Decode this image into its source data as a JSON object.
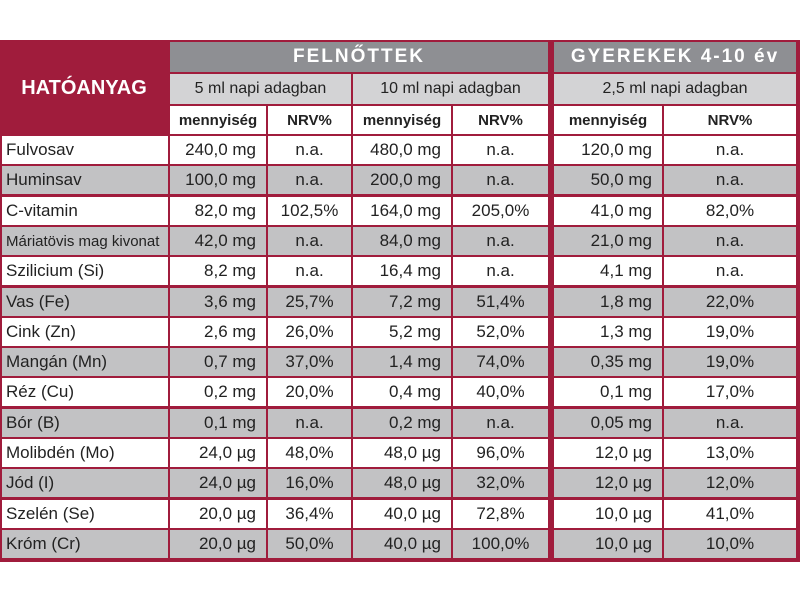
{
  "header": {
    "hatoanyag": "HATÓANYAG",
    "felnottek": "FELNŐTTEK",
    "gyerekek": "GYEREKEK 4-10 év",
    "dose_5ml": "5 ml napi adagban",
    "dose_10ml": "10 ml napi adagban",
    "dose_25ml": "2,5 ml napi adagban",
    "mennyiseg": "mennyiség",
    "nrv": "NRV%"
  },
  "rows": [
    {
      "name": "Fulvosav",
      "a_q": "240,0 mg",
      "a_n": "n.a.",
      "b_q": "480,0 mg",
      "b_n": "n.a.",
      "c_q": "120,0 mg",
      "c_n": "n.a."
    },
    {
      "name": "Huminsav",
      "a_q": "100,0 mg",
      "a_n": "n.a.",
      "b_q": "200,0 mg",
      "b_n": "n.a.",
      "c_q": "50,0 mg",
      "c_n": "n.a."
    },
    {
      "name": "C-vitamin",
      "a_q": "82,0 mg",
      "a_n": "102,5%",
      "b_q": "164,0 mg",
      "b_n": "205,0%",
      "c_q": "41,0 mg",
      "c_n": "82,0%"
    },
    {
      "name": "Máriatövis mag kivonat",
      "a_q": "42,0 mg",
      "a_n": "n.a.",
      "b_q": "84,0 mg",
      "b_n": "n.a.",
      "c_q": "21,0 mg",
      "c_n": "n.a."
    },
    {
      "name": "Szilicium (Si)",
      "a_q": "8,2 mg",
      "a_n": "n.a.",
      "b_q": "16,4 mg",
      "b_n": "n.a.",
      "c_q": "4,1 mg",
      "c_n": "n.a."
    },
    {
      "name": "Vas (Fe)",
      "a_q": "3,6 mg",
      "a_n": "25,7%",
      "b_q": "7,2 mg",
      "b_n": "51,4%",
      "c_q": "1,8 mg",
      "c_n": "22,0%"
    },
    {
      "name": "Cink (Zn)",
      "a_q": "2,6 mg",
      "a_n": "26,0%",
      "b_q": "5,2 mg",
      "b_n": "52,0%",
      "c_q": "1,3 mg",
      "c_n": "19,0%"
    },
    {
      "name": "Mangán (Mn)",
      "a_q": "0,7 mg",
      "a_n": "37,0%",
      "b_q": "1,4 mg",
      "b_n": "74,0%",
      "c_q": "0,35 mg",
      "c_n": "19,0%"
    },
    {
      "name": "Réz (Cu)",
      "a_q": "0,2 mg",
      "a_n": "20,0%",
      "b_q": "0,4 mg",
      "b_n": "40,0%",
      "c_q": "0,1 mg",
      "c_n": "17,0%"
    },
    {
      "name": "Bór (B)",
      "a_q": "0,1 mg",
      "a_n": "n.a.",
      "b_q": "0,2 mg",
      "b_n": "n.a.",
      "c_q": "0,05 mg",
      "c_n": "n.a."
    },
    {
      "name": "Molibdén (Mo)",
      "a_q": "24,0 µg",
      "a_n": "48,0%",
      "b_q": "48,0 µg",
      "b_n": "96,0%",
      "c_q": "12,0 µg",
      "c_n": "13,0%"
    },
    {
      "name": "Jód (I)",
      "a_q": "24,0 µg",
      "a_n": "16,0%",
      "b_q": "48,0 µg",
      "b_n": "32,0%",
      "c_q": "12,0 µg",
      "c_n": "12,0%"
    },
    {
      "name": "Szelén (Se)",
      "a_q": "20,0 µg",
      "a_n": "36,4%",
      "b_q": "40,0 µg",
      "b_n": "72,8%",
      "c_q": "10,0 µg",
      "c_n": "41,0%"
    },
    {
      "name": "Króm (Cr)",
      "a_q": "20,0 µg",
      "a_n": "50,0%",
      "b_q": "40,0 µg",
      "b_n": "100,0%",
      "c_q": "10,0 µg",
      "c_n": "10,0%"
    }
  ],
  "colors": {
    "panel": "#a01c3c",
    "title_bar": "#8e8f93",
    "sub_header": "#d3d3d5",
    "row_white": "#ffffff",
    "row_gray": "#c2c2c4"
  }
}
